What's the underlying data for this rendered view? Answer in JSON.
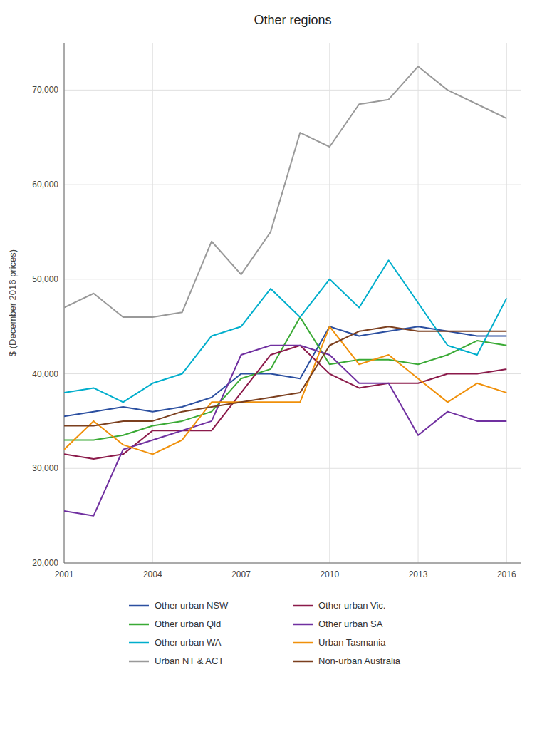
{
  "chart_data": {
    "type": "line",
    "title": "Other regions",
    "ylabel": "$ (December 2016 prices)",
    "x": [
      2001,
      2002,
      2003,
      2004,
      2005,
      2006,
      2007,
      2008,
      2009,
      2010,
      2011,
      2012,
      2013,
      2014,
      2015,
      2016
    ],
    "xlim": [
      2001,
      2016.5
    ],
    "xticks": [
      2001,
      2004,
      2007,
      2010,
      2013,
      2016
    ],
    "ylim": [
      20000,
      75000
    ],
    "yticks": [
      {
        "value": 20000,
        "label": "20,000"
      },
      {
        "value": 30000,
        "label": "30,000"
      },
      {
        "value": 40000,
        "label": "40,000"
      },
      {
        "value": 50000,
        "label": "50,000"
      },
      {
        "value": 60000,
        "label": "60,000"
      },
      {
        "value": 70000,
        "label": "70,000"
      }
    ],
    "grid": true,
    "legend": "bottom",
    "series": [
      {
        "name": "Other urban NSW",
        "color": "#2b4fa0",
        "values": [
          35500,
          36000,
          36500,
          36000,
          36500,
          37500,
          40000,
          40000,
          39500,
          45000,
          44000,
          44500,
          45000,
          44500,
          44000,
          44000
        ]
      },
      {
        "name": "Other urban Qld",
        "color": "#3aaa35",
        "values": [
          33000,
          33000,
          33500,
          34500,
          35000,
          36000,
          39500,
          40500,
          46000,
          41000,
          41500,
          41500,
          41000,
          42000,
          43500,
          43000
        ]
      },
      {
        "name": "Other urban WA",
        "color": "#00aecc",
        "values": [
          38000,
          38500,
          37000,
          39000,
          40000,
          44000,
          45000,
          49000,
          46000,
          50000,
          47000,
          52000,
          47500,
          43000,
          42000,
          48000
        ]
      },
      {
        "name": "Urban NT & ACT",
        "color": "#999999",
        "values": [
          47000,
          48500,
          46000,
          46000,
          46500,
          54000,
          50500,
          55000,
          65500,
          64000,
          68500,
          69000,
          72500,
          70000,
          68500,
          67000
        ]
      },
      {
        "name": "Other urban Vic.",
        "color": "#8b1a4a",
        "values": [
          31500,
          31000,
          31500,
          34000,
          34000,
          34000,
          38000,
          42000,
          43000,
          40000,
          38500,
          39000,
          39000,
          40000,
          40000,
          40500
        ]
      },
      {
        "name": "Other urban SA",
        "color": "#7030a0",
        "values": [
          25500,
          25000,
          32000,
          33000,
          34000,
          35000,
          42000,
          43000,
          43000,
          42000,
          39000,
          39000,
          33500,
          36000,
          35000,
          35000
        ]
      },
      {
        "name": "Urban Tasmania",
        "color": "#f0900a",
        "values": [
          32000,
          35000,
          32500,
          31500,
          33000,
          37000,
          37000,
          37000,
          37000,
          45000,
          41000,
          42000,
          39500,
          37000,
          39000,
          38000
        ]
      },
      {
        "name": "Non-urban Australia",
        "color": "#7b3f1e",
        "values": [
          34500,
          34500,
          35000,
          35000,
          36000,
          36500,
          37000,
          37500,
          38000,
          43000,
          44500,
          45000,
          44500,
          44500,
          44500,
          44500
        ]
      }
    ]
  }
}
